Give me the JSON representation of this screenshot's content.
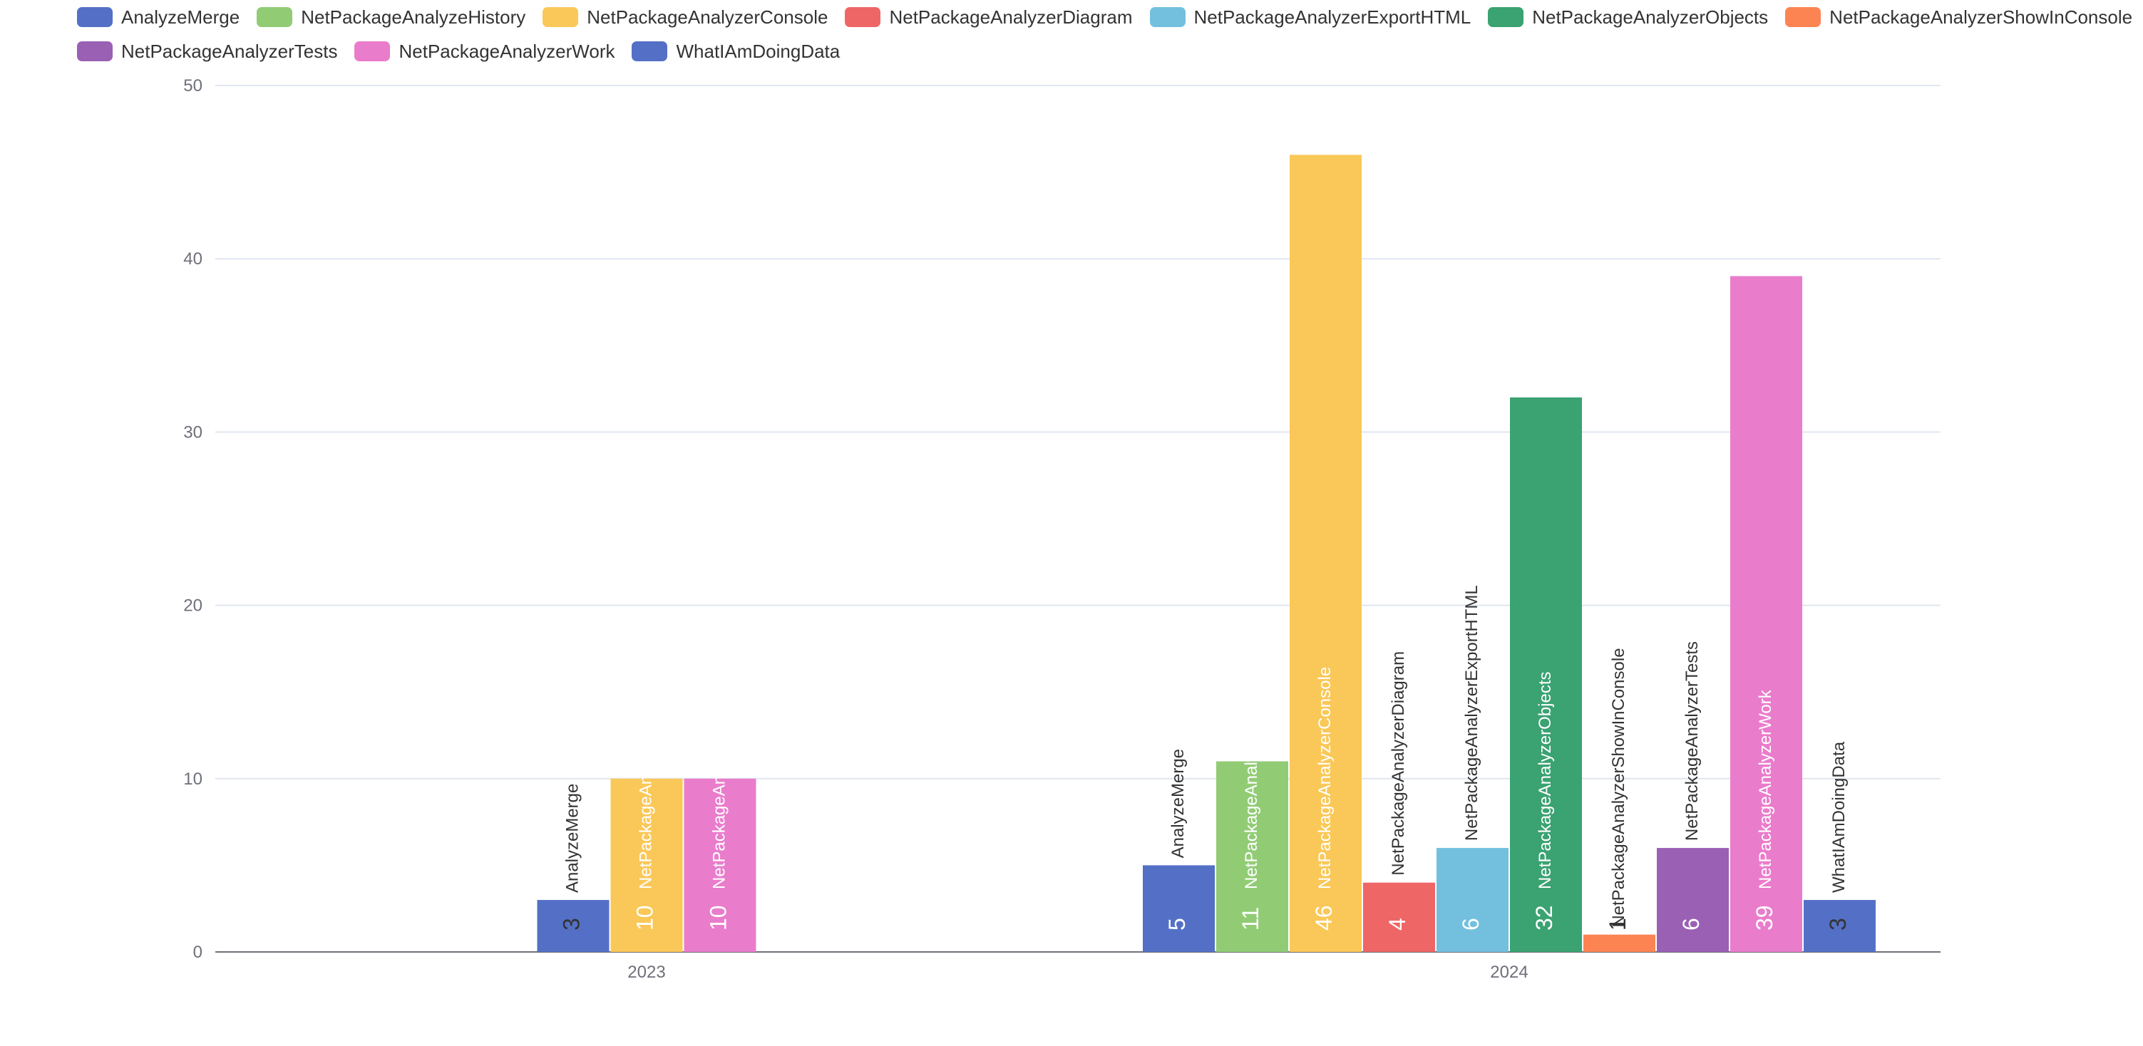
{
  "chart_data": {
    "type": "bar",
    "categories": [
      "2023",
      "2024"
    ],
    "y_ticks": [
      "0",
      "10",
      "20",
      "30",
      "40",
      "50"
    ],
    "ylim": [
      0,
      50
    ],
    "grid": true,
    "legend_position": "top",
    "series": [
      {
        "name": "AnalyzeMerge",
        "color": "#5470c6",
        "values": [
          3,
          5
        ]
      },
      {
        "name": "NetPackageAnalyzeHistory",
        "color": "#91cc75",
        "values": [
          null,
          11
        ]
      },
      {
        "name": "NetPackageAnalyzerConsole",
        "color": "#fac858",
        "values": [
          10,
          46
        ]
      },
      {
        "name": "NetPackageAnalyzerDiagram",
        "color": "#ee6666",
        "values": [
          null,
          4
        ]
      },
      {
        "name": "NetPackageAnalyzerExportHTML",
        "color": "#73c0de",
        "values": [
          null,
          6
        ]
      },
      {
        "name": "NetPackageAnalyzerObjects",
        "color": "#3ba272",
        "values": [
          null,
          32
        ]
      },
      {
        "name": "NetPackageAnalyzerShowInConsole",
        "color": "#fc8452",
        "values": [
          null,
          1
        ]
      },
      {
        "name": "NetPackageAnalyzerTests",
        "color": "#9a60b4",
        "values": [
          null,
          6
        ]
      },
      {
        "name": "NetPackageAnalyzerWork",
        "color": "#ea7ccc",
        "values": [
          10,
          39
        ]
      },
      {
        "name": "WhatIAmDoingData",
        "color": "#5470c6",
        "values": [
          null,
          3
        ]
      }
    ]
  }
}
